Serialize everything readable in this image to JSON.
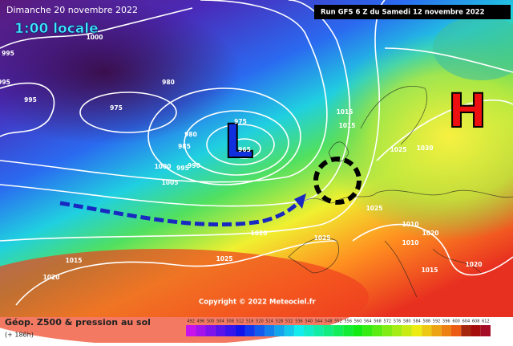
{
  "header": {
    "title": "Dimanche 20 novembre 2022",
    "time": "1:00 locale",
    "run": "Run GFS 6 Z du Samedi 12 novembre 2022"
  },
  "markers": {
    "low": "L",
    "high": "H"
  },
  "isobar_labels": [
    "995",
    "995",
    "995",
    "1000",
    "980",
    "975",
    "975",
    "980",
    "985",
    "965",
    "990",
    "995",
    "1000",
    "1005",
    "1015",
    "1015",
    "1025",
    "1030",
    "1025",
    "1020",
    "1025",
    "1010",
    "1010",
    "1020",
    "1015",
    "1020",
    "1025",
    "1015",
    "1020"
  ],
  "copyright": "Copyright © 2022 Meteociel.fr",
  "footer": {
    "title": "Géop. Z500 & pression au sol",
    "lead": "(+ 186h)"
  },
  "scale": [
    492,
    496,
    500,
    504,
    508,
    512,
    516,
    520,
    524,
    528,
    532,
    536,
    540,
    544,
    548,
    552,
    556,
    560,
    564,
    568,
    572,
    576,
    580,
    584,
    588,
    592,
    596,
    600,
    604,
    608,
    612
  ]
}
